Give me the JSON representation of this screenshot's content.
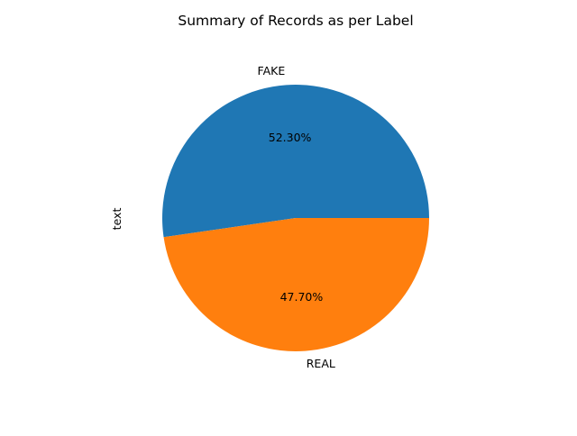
{
  "chart_data": {
    "type": "pie",
    "title": "Summary of Records as per Label",
    "ylabel": "text",
    "categories": [
      "FAKE",
      "REAL"
    ],
    "values": [
      52.3,
      47.7
    ],
    "percent_labels": [
      "52.30%",
      "47.70%"
    ],
    "colors": [
      "#1f77b4",
      "#ff7f0e"
    ],
    "start_angle_deg": 0,
    "direction": "counterclockwise",
    "legend": "none"
  }
}
